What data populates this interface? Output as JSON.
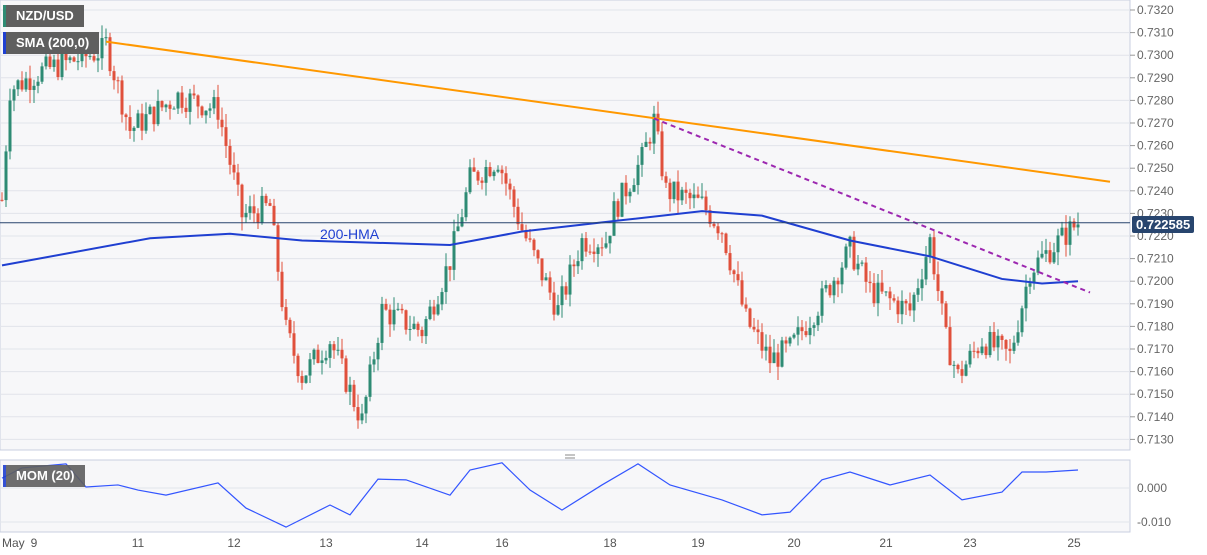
{
  "chart_data": {
    "type": "candlestick",
    "symbol": "NZD/USD",
    "indicator_label": "SMA (200,0)",
    "hma_label": "200-HMA",
    "momentum_label": "MOM (20)",
    "current_price": "0.722585",
    "ylim": [
      0.7125,
      0.7325
    ],
    "yticks": [
      "0.7320",
      "0.7310",
      "0.7300",
      "0.7290",
      "0.7280",
      "0.7270",
      "0.7260",
      "0.7250",
      "0.7240",
      "0.7230",
      "0.7220",
      "0.7210",
      "0.7200",
      "0.7190",
      "0.7180",
      "0.7170",
      "0.7160",
      "0.7150",
      "0.7140",
      "0.7130"
    ],
    "mom_yticks": [
      "0.000",
      "-0.010"
    ],
    "xticks": [
      {
        "label": "May",
        "bar": 0
      },
      {
        "label": "9",
        "bar": 8
      },
      {
        "label": "11",
        "bar": 34
      },
      {
        "label": "12",
        "bar": 58
      },
      {
        "label": "13",
        "bar": 81
      },
      {
        "label": "14",
        "bar": 105
      },
      {
        "label": "16",
        "bar": 125
      },
      {
        "label": "18",
        "bar": 152
      },
      {
        "label": "19",
        "bar": 174
      },
      {
        "label": "20",
        "bar": 198
      },
      {
        "label": "21",
        "bar": 221
      },
      {
        "label": "23",
        "bar": 242
      },
      {
        "label": "25",
        "bar": 268
      }
    ],
    "price_path": [
      [
        0,
        0.7236
      ],
      [
        2,
        0.7285
      ],
      [
        10,
        0.7293
      ],
      [
        25,
        0.7302
      ],
      [
        26,
        0.7305
      ],
      [
        32,
        0.7267
      ],
      [
        44,
        0.7282
      ],
      [
        54,
        0.7276
      ],
      [
        60,
        0.7229
      ],
      [
        67,
        0.7233
      ],
      [
        71,
        0.7178
      ],
      [
        75,
        0.7158
      ],
      [
        82,
        0.7174
      ],
      [
        90,
        0.7138
      ],
      [
        95,
        0.7187
      ],
      [
        105,
        0.7178
      ],
      [
        112,
        0.7209
      ],
      [
        117,
        0.7245
      ],
      [
        124,
        0.7254
      ],
      [
        130,
        0.7223
      ],
      [
        139,
        0.7187
      ],
      [
        145,
        0.7218
      ],
      [
        151,
        0.7218
      ],
      [
        153,
        0.7231
      ],
      [
        160,
        0.7254
      ],
      [
        163,
        0.7271
      ],
      [
        166,
        0.724
      ],
      [
        175,
        0.7234
      ],
      [
        180,
        0.7223
      ],
      [
        186,
        0.7183
      ],
      [
        192,
        0.7165
      ],
      [
        197,
        0.717
      ],
      [
        205,
        0.7192
      ],
      [
        212,
        0.7214
      ],
      [
        217,
        0.7196
      ],
      [
        227,
        0.7187
      ],
      [
        232,
        0.7218
      ],
      [
        236,
        0.7174
      ],
      [
        239,
        0.7158
      ],
      [
        245,
        0.7174
      ],
      [
        252,
        0.7167
      ],
      [
        257,
        0.7205
      ],
      [
        262,
        0.7214
      ],
      [
        269,
        0.7226
      ]
    ],
    "hma": [
      [
        0,
        0.7207
      ],
      [
        37,
        0.7219
      ],
      [
        57,
        0.7221
      ],
      [
        75,
        0.7218
      ],
      [
        112,
        0.7216
      ],
      [
        130,
        0.7222
      ],
      [
        155,
        0.7227
      ],
      [
        175,
        0.7231
      ],
      [
        190,
        0.7229
      ],
      [
        212,
        0.7218
      ],
      [
        232,
        0.7211
      ],
      [
        250,
        0.7201
      ],
      [
        260,
        0.7199
      ],
      [
        269,
        0.72
      ]
    ],
    "resistance_line": [
      [
        26,
        0.7306
      ],
      [
        277,
        0.7244
      ]
    ],
    "dashed_trendline": [
      [
        163,
        0.7272
      ],
      [
        272,
        0.7195
      ]
    ],
    "momentum": [
      [
        0,
        0.0029
      ],
      [
        5,
        0.0059
      ],
      [
        16,
        0.0071
      ],
      [
        21,
        0.0003
      ],
      [
        29,
        0.0009
      ],
      [
        34,
        -0.0006
      ],
      [
        41,
        -0.0021
      ],
      [
        54,
        0.0015
      ],
      [
        61,
        -0.0059
      ],
      [
        71,
        -0.0115
      ],
      [
        82,
        -0.005
      ],
      [
        87,
        -0.0079
      ],
      [
        94,
        0.0026
      ],
      [
        101,
        0.0024
      ],
      [
        112,
        -0.0021
      ],
      [
        117,
        0.0053
      ],
      [
        125,
        0.0074
      ],
      [
        132,
        -0.0006
      ],
      [
        140,
        -0.0065
      ],
      [
        150,
        0.0009
      ],
      [
        159,
        0.0071
      ],
      [
        167,
        0.0009
      ],
      [
        180,
        -0.0035
      ],
      [
        190,
        -0.0079
      ],
      [
        197,
        -0.0071
      ],
      [
        205,
        0.0024
      ],
      [
        212,
        0.0047
      ],
      [
        222,
        0.0009
      ],
      [
        232,
        0.0038
      ],
      [
        240,
        -0.0035
      ],
      [
        250,
        -0.0012
      ],
      [
        255,
        0.0047
      ],
      [
        261,
        0.0047
      ],
      [
        269,
        0.0053
      ]
    ],
    "colors": {
      "up": "#2e8b74",
      "down": "#e0503c",
      "hma": "#1f3fd1",
      "resistance": "#ff9800",
      "dashed": "#9c27b0",
      "mom": "#3355ff"
    }
  }
}
